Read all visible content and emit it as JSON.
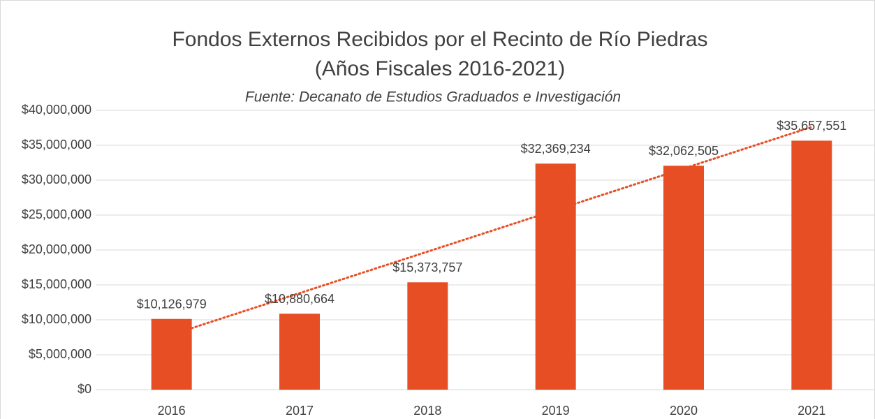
{
  "chart_data": {
    "type": "bar",
    "title": [
      "Fondos Externos Recibidos por el Recinto de Río Piedras",
      "(Años Fiscales 2016-2021)"
    ],
    "subtitle": "Fuente: Decanato de Estudios Graduados e Investigación",
    "categories": [
      "2016",
      "2017",
      "2018",
      "2019",
      "2020",
      "2021"
    ],
    "values": [
      10126979,
      10880664,
      15373757,
      32369234,
      32062505,
      35657551
    ],
    "value_labels": [
      "$10,126,979",
      "$10,880,664",
      "$15,373,757",
      "$32,369,234",
      "$32,062,505",
      "$35,657,551"
    ],
    "color": "#e84e24",
    "trendline": {
      "type": "linear",
      "color": "#e84e24"
    },
    "ylim": [
      0,
      40000000
    ],
    "yticks": [
      {
        "value": 0,
        "label": "$0"
      },
      {
        "value": 5000000,
        "label": "$5,000,000"
      },
      {
        "value": 10000000,
        "label": "$10,000,000"
      },
      {
        "value": 15000000,
        "label": "$15,000,000"
      },
      {
        "value": 20000000,
        "label": "$20,000,000"
      },
      {
        "value": 25000000,
        "label": "$25,000,000"
      },
      {
        "value": 30000000,
        "label": "$30,000,000"
      },
      {
        "value": 35000000,
        "label": "$35,000,000"
      },
      {
        "value": 40000000,
        "label": "$40,000,000"
      }
    ],
    "grid": true
  }
}
